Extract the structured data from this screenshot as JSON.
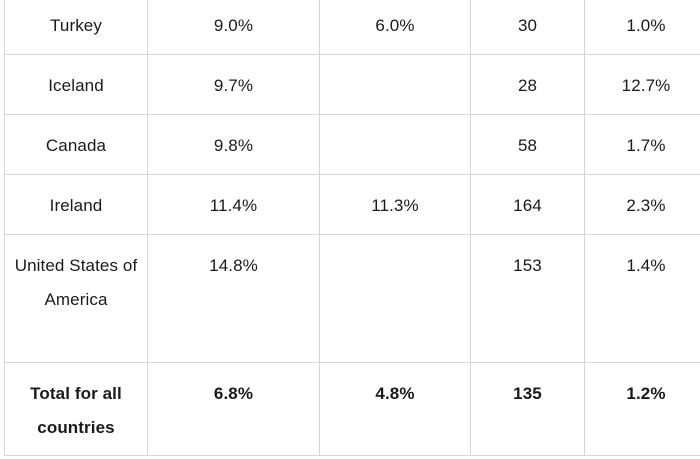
{
  "rows": [
    {
      "country": "Turkey",
      "c1": "9.0%",
      "c2": "6.0%",
      "c3": "30",
      "c4": "1.0%"
    },
    {
      "country": "Iceland",
      "c1": "9.7%",
      "c2": "",
      "c3": "28",
      "c4": "12.7%"
    },
    {
      "country": "Canada",
      "c1": "9.8%",
      "c2": "",
      "c3": "58",
      "c4": "1.7%"
    },
    {
      "country": "Ireland",
      "c1": "11.4%",
      "c2": "11.3%",
      "c3": "164",
      "c4": "2.3%"
    },
    {
      "country": "United States of America",
      "c1": "14.8%",
      "c2": "",
      "c3": "153",
      "c4": "1.4%"
    }
  ],
  "total": {
    "label": "Total for all countries",
    "c1": "6.8%",
    "c2": "4.8%",
    "c3": "135",
    "c4": "1.2%"
  }
}
